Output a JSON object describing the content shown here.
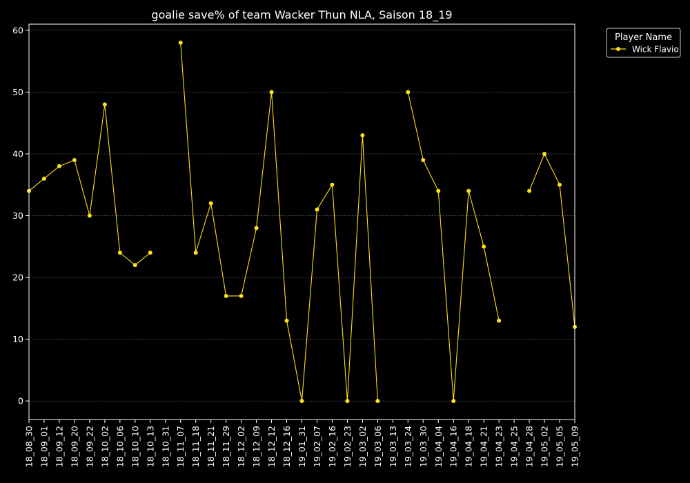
{
  "chart_data": {
    "type": "line",
    "title": "goalie save% of team Wacker Thun NLA, Saison 18_19",
    "xlabel": "",
    "ylabel": "",
    "ylim": [
      -3,
      61
    ],
    "yticks": [
      0,
      10,
      20,
      30,
      40,
      50,
      60
    ],
    "grid": "horizontal dashed",
    "legend": {
      "title": "Player Name",
      "placement": "right-outside-top"
    },
    "categories": [
      "18_08_30",
      "18_09_01",
      "18_09_12",
      "18_09_20",
      "18_09_22",
      "18_10_02",
      "18_10_06",
      "18_10_10",
      "18_10_13",
      "18_10_31",
      "18_11_07",
      "18_11_18",
      "18_11_21",
      "18_11_29",
      "18_12_02",
      "18_12_09",
      "18_12_12",
      "18_12_16",
      "19_01_31",
      "19_02_07",
      "19_02_16",
      "19_02_23",
      "19_03_02",
      "19_03_06",
      "19_03_13",
      "19_03_24",
      "19_03_30",
      "19_04_04",
      "19_04_16",
      "19_04_18",
      "19_04_21",
      "19_04_23",
      "19_04_25",
      "19_04_28",
      "19_05_02",
      "19_05_05",
      "19_05_09"
    ],
    "series": [
      {
        "name": "Wick Flavio",
        "color": "#ffe01a",
        "values": [
          34,
          36,
          38,
          39,
          30,
          48,
          24,
          22,
          24,
          null,
          58,
          24,
          32,
          17,
          17,
          28,
          50,
          13,
          0,
          31,
          35,
          0,
          43,
          0,
          null,
          50,
          39,
          34,
          0,
          34,
          25,
          13,
          null,
          34,
          40,
          35,
          12
        ]
      }
    ]
  }
}
